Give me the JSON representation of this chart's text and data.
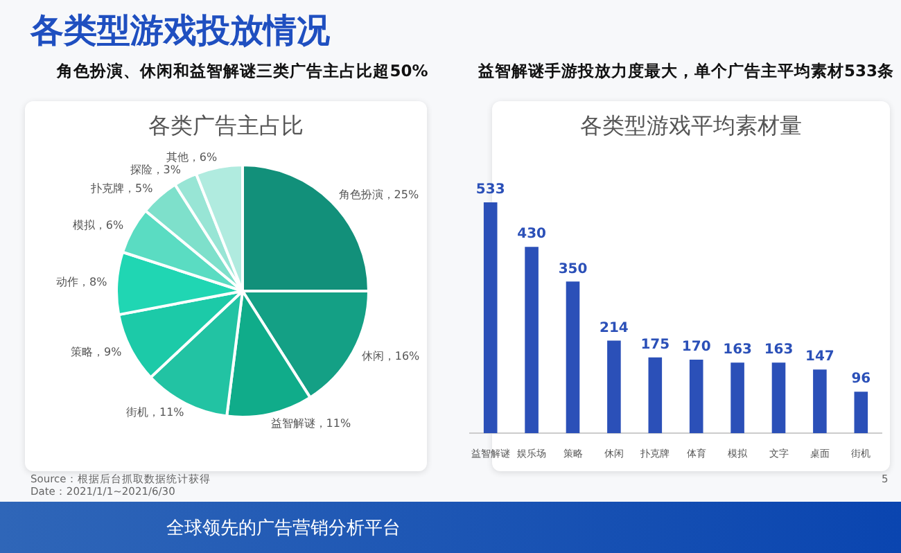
{
  "chart_data": [
    {
      "type": "pie",
      "title": "各类广告主占比",
      "subtitle": "角色扮演、休闲和益智解谜三类广告主占比超50%",
      "categories": [
        "角色扮演",
        "休闲",
        "益智解谜",
        "街机",
        "策略",
        "动作",
        "模拟",
        "扑克牌",
        "探险",
        "其他"
      ],
      "values": [
        25,
        16,
        11,
        11,
        9,
        8,
        6,
        5,
        3,
        6
      ],
      "value_labels": [
        "，25%",
        "，16%",
        "，11%",
        "，11%",
        "，9%",
        "，8%",
        "，6%",
        "，5%",
        "，3%",
        "，6%"
      ],
      "colors": [
        "#12907a",
        "#14a085",
        "#10ac8a",
        "#22c3a3",
        "#1ccaa8",
        "#20d6b3",
        "#5adcc2",
        "#7ee0cb",
        "#98e5d5",
        "#b0ebdf"
      ],
      "annotations": [
        "各类型游戏投放情况",
        "Source：根据后台抓取数据统计获得",
        "Date：2021/1/1~2021/6/30",
        "5",
        "全球领先的广告营销分析平台"
      ]
    },
    {
      "type": "bar",
      "title": "各类型游戏平均素材量",
      "subtitle": "益智解谜手游投放力度最大，单个广告主平均素材533条",
      "categories": [
        "益智解谜",
        "娱乐场",
        "策略",
        "休闲",
        "扑克牌",
        "体育",
        "模拟",
        "文字",
        "桌面",
        "街机"
      ],
      "values": [
        533,
        430,
        350,
        214,
        175,
        170,
        163,
        163,
        147,
        96
      ],
      "color": "#2b50b8",
      "data_labels": true
    }
  ]
}
